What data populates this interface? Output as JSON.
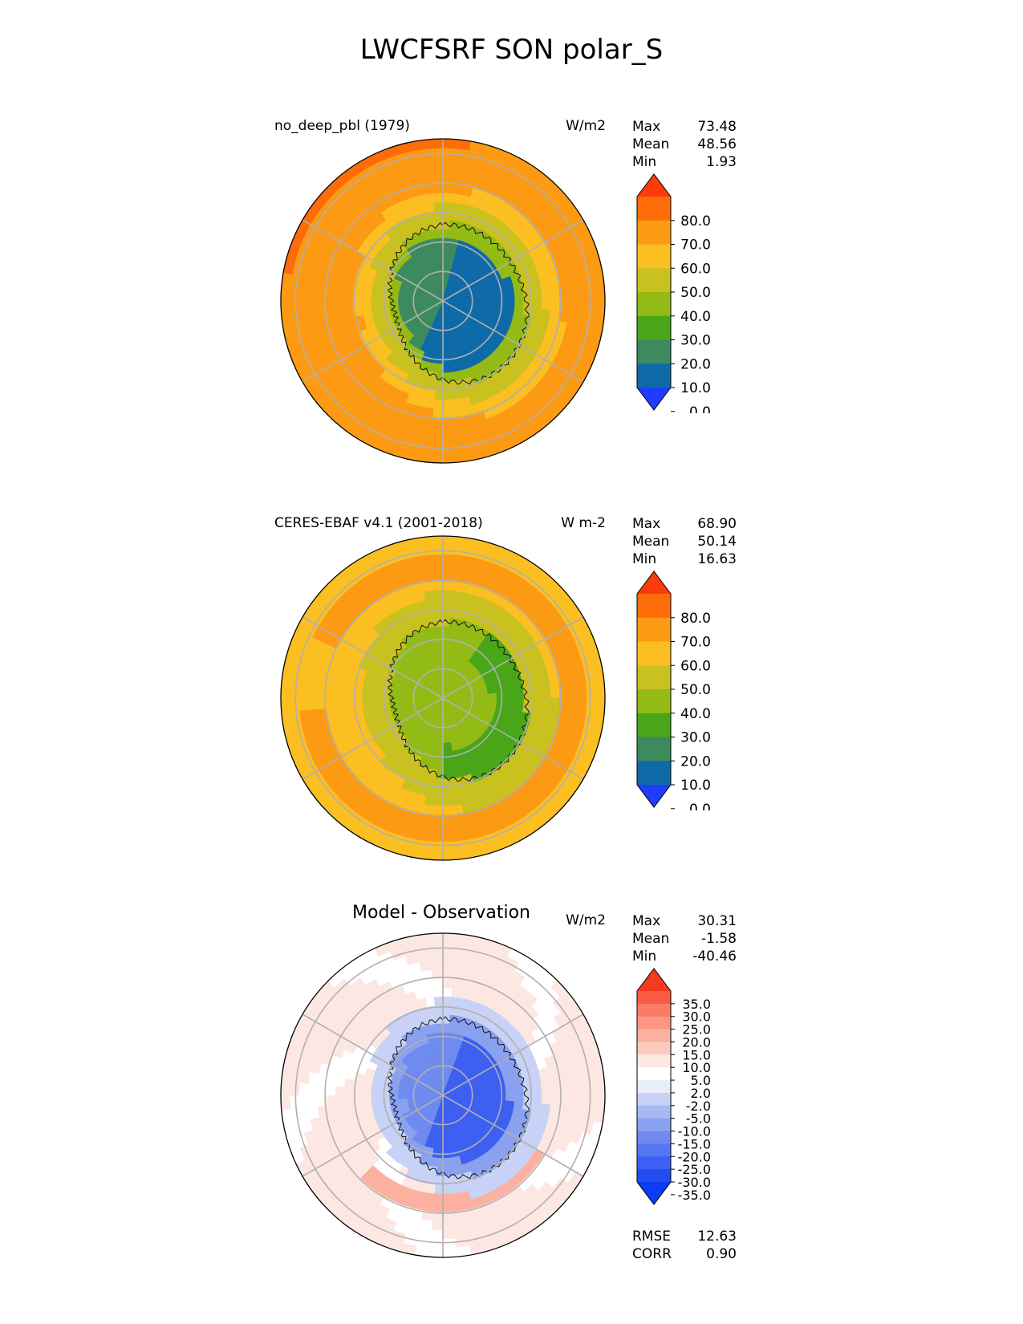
{
  "title": "LWCFSRF SON polar_S",
  "chart_data": [
    {
      "type": "heatmap",
      "projection": "south-polar-stereographic",
      "title": "no_deep_pbl (1979)",
      "units": "W/m2",
      "stats": {
        "max": "73.48",
        "mean": "48.56",
        "min": "1.93"
      },
      "colorbar": {
        "ticks": [
          "80.0",
          "70.0",
          "60.0",
          "50.0",
          "40.0",
          "30.0",
          "20.0",
          "10.0",
          "0.0"
        ],
        "colors": [
          "#1f3cff",
          "#0f6aa8",
          "#3d8a5e",
          "#49a619",
          "#93bb16",
          "#c9c11f",
          "#fbbf22",
          "#fc9a14",
          "#fc6c08",
          "#fc3b0c"
        ],
        "extend": "both"
      },
      "field": {
        "ocean_value": 62,
        "coast_band_value": 52,
        "inner_ring_value": 42,
        "ice_edge_value": 30,
        "east_plateau_value": 6,
        "west_plateau_value": 18
      }
    },
    {
      "type": "heatmap",
      "projection": "south-polar-stereographic",
      "title": "CERES-EBAF v4.1 (2001-2018)",
      "units": "W m-2",
      "stats": {
        "max": "68.90",
        "mean": "50.14",
        "min": "16.63"
      },
      "colorbar": {
        "ticks": [
          "80.0",
          "70.0",
          "60.0",
          "50.0",
          "40.0",
          "30.0",
          "20.0",
          "10.0",
          "0.0"
        ],
        "colors": [
          "#1f3cff",
          "#0f6aa8",
          "#3d8a5e",
          "#49a619",
          "#93bb16",
          "#c9c11f",
          "#fbbf22",
          "#fc9a14",
          "#fc6c08",
          "#fc3b0c"
        ],
        "extend": "both"
      },
      "field": {
        "ocean_value": 56,
        "storm_band_value": 63,
        "coast_band_value": 47,
        "plateau_value": 38,
        "east_plateau_value": 28
      }
    },
    {
      "type": "heatmap",
      "projection": "south-polar-stereographic",
      "title": "Model - Observation",
      "units": "W/m2",
      "stats": {
        "max": "30.31",
        "mean": "-1.58",
        "min": "-40.46"
      },
      "colorbar": {
        "ticks": [
          "35.0",
          "30.0",
          "25.0",
          "20.0",
          "15.0",
          "10.0",
          "5.0",
          "2.0",
          "-2.0",
          "-5.0",
          "-10.0",
          "-15.0",
          "-20.0",
          "-25.0",
          "-30.0",
          "-35.0"
        ],
        "colors": [
          "#0e3bf5",
          "#234cf3",
          "#3d60f2",
          "#5675f0",
          "#6f8bef",
          "#8aa1ef",
          "#a7b8f2",
          "#c7d2f6",
          "#e8edfb",
          "#ffffff",
          "#fde7e3",
          "#fccbc0",
          "#fbb0a0",
          "#fb9682",
          "#fa7b66",
          "#f75c46",
          "#f43a1f"
        ],
        "extend": "both"
      },
      "field": {
        "ocean_value": 7,
        "storm_band_value": 13,
        "coast_band_value": -4,
        "plateau_value": -18,
        "east_plateau_value": -30
      },
      "metrics": {
        "rmse_label": "RMSE",
        "rmse": "12.63",
        "corr_label": "CORR",
        "corr": "0.90"
      }
    }
  ]
}
